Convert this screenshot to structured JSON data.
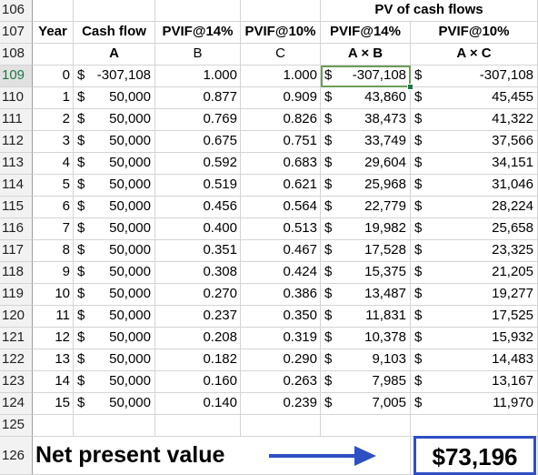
{
  "row_numbers": [
    "106",
    "107",
    "108",
    "109",
    "110",
    "111",
    "112",
    "113",
    "114",
    "115",
    "116",
    "117",
    "118",
    "119",
    "120",
    "121",
    "122",
    "123",
    "124",
    "125",
    "126"
  ],
  "selected_row": "109",
  "header": {
    "group_title": "PV of cash flows",
    "col_labels": [
      "Year",
      "Cash flow",
      "PVIF@14%",
      "PVIF@10%",
      "PVIF@14%",
      "PVIF@10%"
    ],
    "col_letters": [
      "A",
      "B",
      "C",
      "A × B",
      "A × C"
    ]
  },
  "currency_symbol": "$",
  "rows": [
    {
      "year": "0",
      "cash": "-307,108",
      "pvif14": "1.000",
      "pvif10": "1.000",
      "pv14": "-307,108",
      "pv10": "-307,108"
    },
    {
      "year": "1",
      "cash": "50,000",
      "pvif14": "0.877",
      "pvif10": "0.909",
      "pv14": "43,860",
      "pv10": "45,455"
    },
    {
      "year": "2",
      "cash": "50,000",
      "pvif14": "0.769",
      "pvif10": "0.826",
      "pv14": "38,473",
      "pv10": "41,322"
    },
    {
      "year": "3",
      "cash": "50,000",
      "pvif14": "0.675",
      "pvif10": "0.751",
      "pv14": "33,749",
      "pv10": "37,566"
    },
    {
      "year": "4",
      "cash": "50,000",
      "pvif14": "0.592",
      "pvif10": "0.683",
      "pv14": "29,604",
      "pv10": "34,151"
    },
    {
      "year": "5",
      "cash": "50,000",
      "pvif14": "0.519",
      "pvif10": "0.621",
      "pv14": "25,968",
      "pv10": "31,046"
    },
    {
      "year": "6",
      "cash": "50,000",
      "pvif14": "0.456",
      "pvif10": "0.564",
      "pv14": "22,779",
      "pv10": "28,224"
    },
    {
      "year": "7",
      "cash": "50,000",
      "pvif14": "0.400",
      "pvif10": "0.513",
      "pv14": "19,982",
      "pv10": "25,658"
    },
    {
      "year": "8",
      "cash": "50,000",
      "pvif14": "0.351",
      "pvif10": "0.467",
      "pv14": "17,528",
      "pv10": "23,325"
    },
    {
      "year": "9",
      "cash": "50,000",
      "pvif14": "0.308",
      "pvif10": "0.424",
      "pv14": "15,375",
      "pv10": "21,205"
    },
    {
      "year": "10",
      "cash": "50,000",
      "pvif14": "0.270",
      "pvif10": "0.386",
      "pv14": "13,487",
      "pv10": "19,277"
    },
    {
      "year": "11",
      "cash": "50,000",
      "pvif14": "0.237",
      "pvif10": "0.350",
      "pv14": "11,831",
      "pv10": "17,525"
    },
    {
      "year": "12",
      "cash": "50,000",
      "pvif14": "0.208",
      "pvif10": "0.319",
      "pv14": "10,378",
      "pv10": "15,932"
    },
    {
      "year": "13",
      "cash": "50,000",
      "pvif14": "0.182",
      "pvif10": "0.290",
      "pv14": "9,103",
      "pv10": "14,483"
    },
    {
      "year": "14",
      "cash": "50,000",
      "pvif14": "0.160",
      "pvif10": "0.263",
      "pv14": "7,985",
      "pv10": "13,167"
    },
    {
      "year": "15",
      "cash": "50,000",
      "pvif14": "0.140",
      "pvif10": "0.239",
      "pv14": "7,005",
      "pv10": "11,970"
    }
  ],
  "npv": {
    "label": "Net present value",
    "value": "$73,196",
    "highlight_color": "#2f4fc4"
  },
  "colors": {
    "selection": "#217346",
    "grid": "#d4d4d4",
    "header_bg": "#f2f2f2"
  }
}
